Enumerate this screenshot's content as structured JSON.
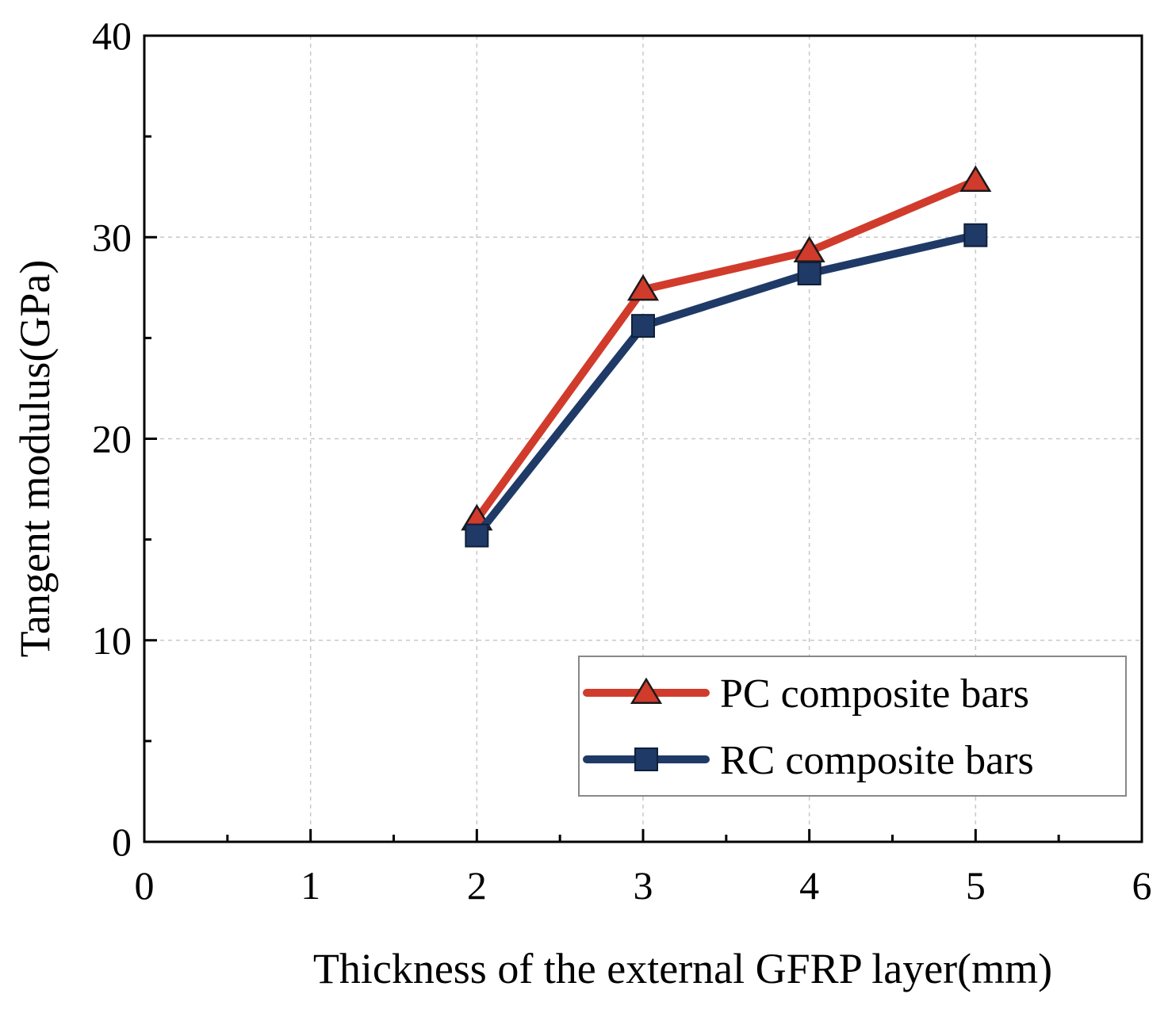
{
  "chart_data": {
    "type": "line",
    "title": "",
    "xlabel": "Thickness of the external GFRP layer(mm)",
    "ylabel": "Tangent modulus(GPa)",
    "xlim": [
      0,
      6
    ],
    "ylim": [
      0,
      40
    ],
    "x_ticks": [
      0,
      1,
      2,
      3,
      4,
      5,
      6
    ],
    "y_ticks": [
      0,
      10,
      20,
      30,
      40
    ],
    "grid": true,
    "legend_position": "bottom-right",
    "x": [
      2,
      3,
      4,
      5
    ],
    "series": [
      {
        "name": "PC composite bars",
        "values": [
          16.0,
          27.4,
          29.3,
          32.8
        ],
        "color": "#d13b2c",
        "marker": "triangle"
      },
      {
        "name": "RC composite bars",
        "values": [
          15.2,
          25.6,
          28.2,
          30.1
        ],
        "color": "#1f3a66",
        "marker": "square"
      }
    ]
  }
}
